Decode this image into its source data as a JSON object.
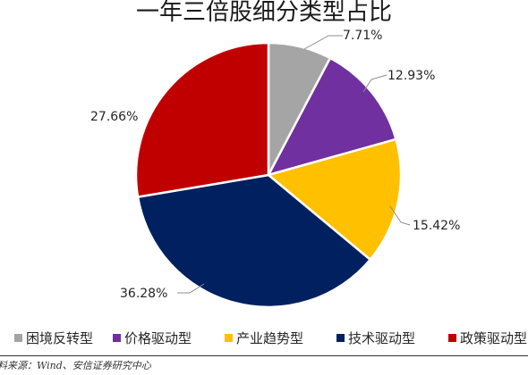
{
  "chart_data": {
    "type": "pie",
    "title": "一年三倍股细分类型占比",
    "slices": [
      {
        "name": "困境反转型",
        "value": 7.71,
        "label": "7.71%",
        "color": "#A5A5A5"
      },
      {
        "name": "价格驱动型",
        "value": 12.93,
        "label": "12.93%",
        "color": "#7030A0"
      },
      {
        "name": "产业趋势型",
        "value": 15.42,
        "label": "15.42%",
        "color": "#FFC000"
      },
      {
        "name": "技术驱动型",
        "value": 36.28,
        "label": "36.28%",
        "color": "#002060"
      },
      {
        "name": "政策驱动型",
        "value": 27.66,
        "label": "27.66%",
        "color": "#C00000"
      }
    ],
    "legend_position": "bottom"
  },
  "source": "资料来源：Wind、安信证券研究中心"
}
